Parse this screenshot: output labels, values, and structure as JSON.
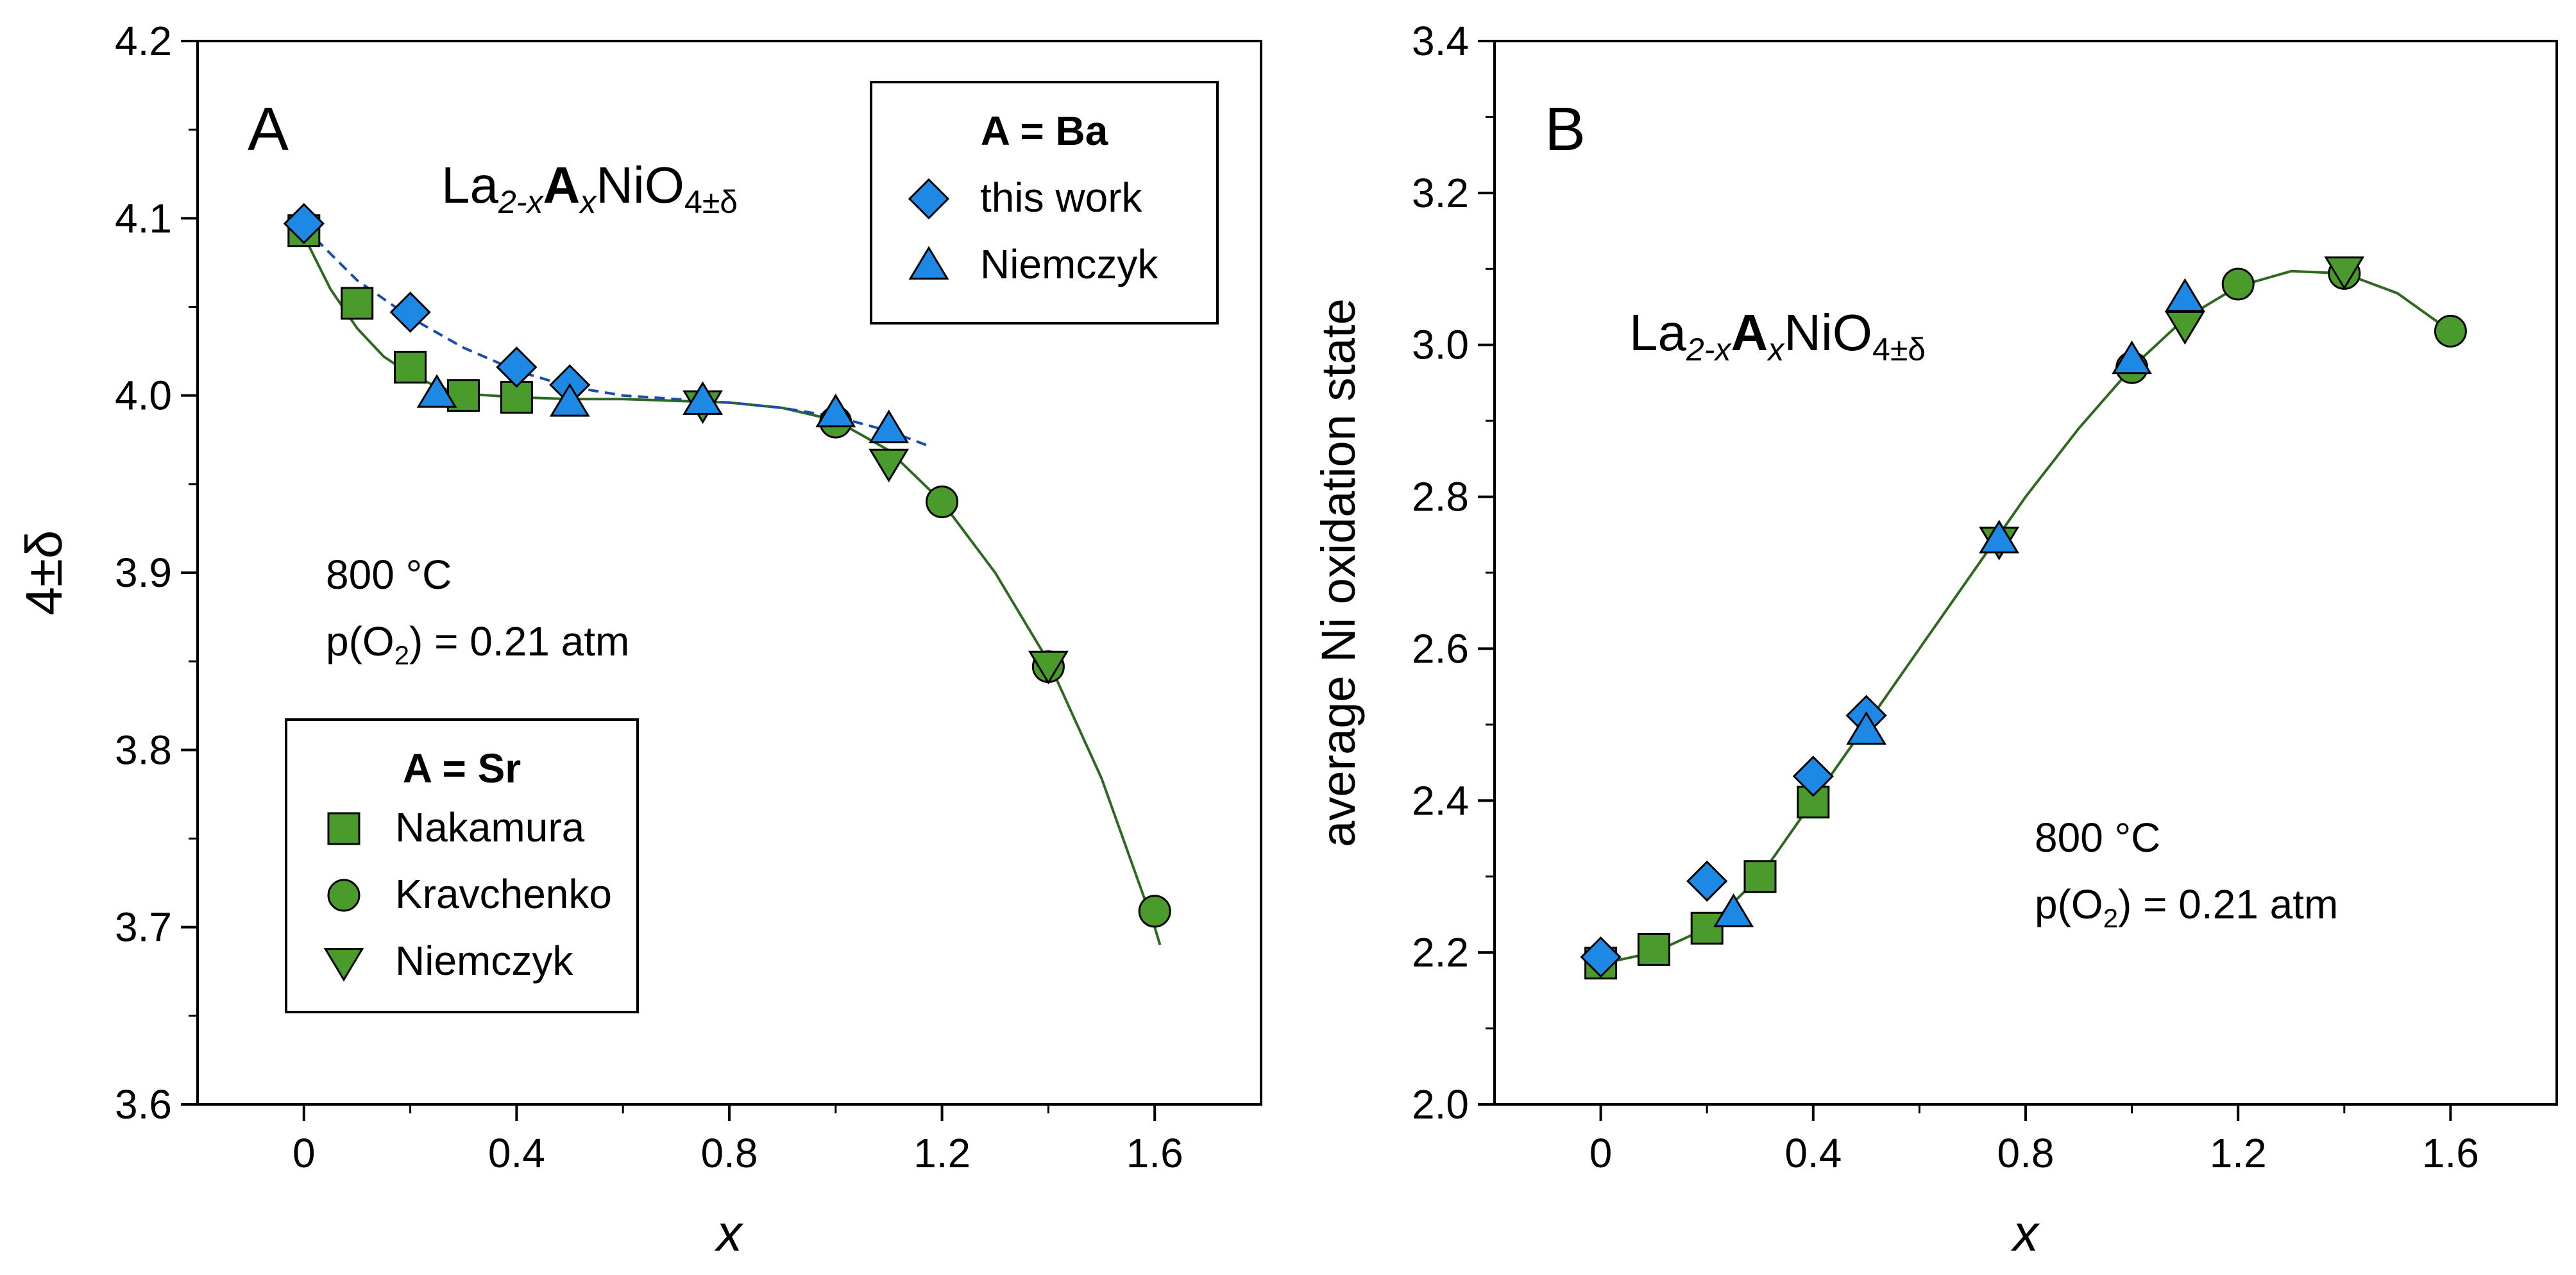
{
  "chart_data": [
    {
      "type": "scatter",
      "panel_label": "A",
      "xlabel": "x",
      "ylabel": "4±δ",
      "xlim": [
        -0.2,
        1.8
      ],
      "ylim": [
        3.6,
        4.2
      ],
      "xticks": [
        0,
        0.4,
        0.8,
        1.2,
        1.6
      ],
      "xtick_labels": [
        "0",
        "0.4",
        "0.8",
        "1.2",
        "1.6"
      ],
      "yticks": [
        3.6,
        3.7,
        3.8,
        3.9,
        4.0,
        4.1,
        4.2
      ],
      "ytick_labels": [
        "3.6",
        "3.7",
        "3.8",
        "3.9",
        "4.0",
        "4.1",
        "4.2"
      ],
      "formula": {
        "base": "La",
        "sub1": "2-x",
        "bold": "A",
        "sub2": "x",
        "mid": "NiO",
        "sub3": "4±δ"
      },
      "conditions": {
        "temperature": "800 °C",
        "pressure_pre": "p(O",
        "pressure_sub": "2",
        "pressure_post": ") = 0.21 atm"
      },
      "legends": [
        {
          "title": "A = Ba",
          "position": "top-right",
          "entries": [
            "this work",
            "Niemczyk"
          ]
        },
        {
          "title": "A = Sr",
          "position": "bottom-left",
          "entries": [
            "Nakamura",
            "Kravchenko",
            "Niemczyk"
          ]
        }
      ],
      "series": [
        {
          "name": "this work",
          "group": "A = Ba",
          "marker": "diamond",
          "color": "#1e88e5",
          "points": [
            [
              0,
              4.097
            ],
            [
              0.2,
              4.047
            ],
            [
              0.4,
              4.016
            ],
            [
              0.5,
              4.006
            ]
          ]
        },
        {
          "name": "Niemczyk",
          "group": "A = Ba",
          "marker": "triangle-up",
          "color": "#1e88e5",
          "points": [
            [
              0.25,
              4.001
            ],
            [
              0.5,
              3.996
            ],
            [
              0.75,
              3.997
            ],
            [
              1.0,
              3.99
            ],
            [
              1.1,
              3.981
            ]
          ]
        },
        {
          "name": "Nakamura",
          "group": "A = Sr",
          "marker": "square",
          "color": "#4a9a2c",
          "points": [
            [
              0,
              4.093
            ],
            [
              0.1,
              4.052
            ],
            [
              0.2,
              4.016
            ],
            [
              0.3,
              4.0
            ],
            [
              0.4,
              3.999
            ]
          ]
        },
        {
          "name": "Kravchenko",
          "group": "A = Sr",
          "marker": "circle",
          "color": "#4a9a2c",
          "points": [
            [
              1.0,
              3.985
            ],
            [
              1.2,
              3.94
            ],
            [
              1.4,
              3.847
            ],
            [
              1.6,
              3.709
            ]
          ]
        },
        {
          "name": "Niemczyk",
          "group": "A = Sr",
          "marker": "triangle-down",
          "color": "#4a9a2c",
          "points": [
            [
              0.75,
              3.995
            ],
            [
              1.1,
              3.962
            ],
            [
              1.4,
              3.848
            ]
          ]
        }
      ],
      "fit_lines": [
        {
          "name": "Sr fit",
          "style": "solid",
          "color": "#2d6a1f",
          "points": [
            [
              0,
              4.09
            ],
            [
              0.05,
              4.06
            ],
            [
              0.1,
              4.038
            ],
            [
              0.15,
              4.022
            ],
            [
              0.2,
              4.012
            ],
            [
              0.25,
              4.005
            ],
            [
              0.3,
              4.001
            ],
            [
              0.4,
              3.999
            ],
            [
              0.5,
              3.998
            ],
            [
              0.6,
              3.998
            ],
            [
              0.7,
              3.997
            ],
            [
              0.8,
              3.996
            ],
            [
              0.9,
              3.993
            ],
            [
              1.0,
              3.986
            ],
            [
              1.1,
              3.969
            ],
            [
              1.2,
              3.94
            ],
            [
              1.3,
              3.9
            ],
            [
              1.4,
              3.85
            ],
            [
              1.5,
              3.784
            ],
            [
              1.6,
              3.7
            ],
            [
              1.61,
              3.69
            ]
          ]
        },
        {
          "name": "Ba fit",
          "style": "dashed",
          "color": "#1a4bb0",
          "points": [
            [
              0,
              4.095
            ],
            [
              0.1,
              4.065
            ],
            [
              0.2,
              4.044
            ],
            [
              0.3,
              4.027
            ],
            [
              0.4,
              4.014
            ],
            [
              0.5,
              4.005
            ],
            [
              0.6,
              4.0
            ],
            [
              0.7,
              3.998
            ],
            [
              0.8,
              3.996
            ],
            [
              0.9,
              3.993
            ],
            [
              1.0,
              3.988
            ],
            [
              1.1,
              3.98
            ],
            [
              1.18,
              3.971
            ]
          ]
        }
      ]
    },
    {
      "type": "scatter",
      "panel_label": "B",
      "xlabel": "x",
      "ylabel": "average Ni oxidation state",
      "xlim": [
        -0.2,
        1.8
      ],
      "ylim": [
        2.0,
        3.4
      ],
      "xticks": [
        0,
        0.4,
        0.8,
        1.2,
        1.6
      ],
      "xtick_labels": [
        "0",
        "0.4",
        "0.8",
        "1.2",
        "1.6"
      ],
      "yticks": [
        2.0,
        2.2,
        2.4,
        2.6,
        2.8,
        3.0,
        3.2,
        3.4
      ],
      "ytick_labels": [
        "2.0",
        "2.2",
        "2.4",
        "2.6",
        "2.8",
        "3.0",
        "3.2",
        "3.4"
      ],
      "formula": {
        "base": "La",
        "sub1": "2-x",
        "bold": "A",
        "sub2": "x",
        "mid": "NiO",
        "sub3": "4±δ"
      },
      "conditions": {
        "temperature": "800 °C",
        "pressure_pre": "p(O",
        "pressure_sub": "2",
        "pressure_post": ") = 0.21 atm"
      },
      "series": [
        {
          "name": "this work",
          "group": "A = Ba",
          "marker": "diamond",
          "color": "#1e88e5",
          "points": [
            [
              0,
              2.194
            ],
            [
              0.2,
              2.294
            ],
            [
              0.4,
              2.432
            ],
            [
              0.5,
              2.512
            ]
          ]
        },
        {
          "name": "Niemczyk",
          "group": "A = Ba",
          "marker": "triangle-up",
          "color": "#1e88e5",
          "points": [
            [
              0.25,
              2.252
            ],
            [
              0.5,
              2.492
            ],
            [
              0.75,
              2.744
            ],
            [
              1.0,
              2.98
            ],
            [
              1.1,
              3.062
            ]
          ]
        },
        {
          "name": "Nakamura",
          "group": "A = Sr",
          "marker": "square",
          "color": "#4a9a2c",
          "points": [
            [
              0,
              2.186
            ],
            [
              0.1,
              2.204
            ],
            [
              0.2,
              2.232
            ],
            [
              0.3,
              2.3
            ],
            [
              0.4,
              2.398
            ]
          ]
        },
        {
          "name": "Kravchenko",
          "group": "A = Sr",
          "marker": "circle",
          "color": "#4a9a2c",
          "points": [
            [
              1.0,
              2.97
            ],
            [
              1.2,
              3.08
            ],
            [
              1.4,
              3.094
            ],
            [
              1.6,
              3.018
            ]
          ]
        },
        {
          "name": "Niemczyk",
          "group": "A = Sr",
          "marker": "triangle-down",
          "color": "#4a9a2c",
          "points": [
            [
              0.75,
              2.742
            ],
            [
              1.1,
              3.026
            ],
            [
              1.4,
              3.098
            ]
          ]
        }
      ],
      "fit_lines": [
        {
          "name": "Sr fit",
          "style": "solid",
          "color": "#2d6a1f",
          "points": [
            [
              0,
              2.185
            ],
            [
              0.1,
              2.2
            ],
            [
              0.2,
              2.232
            ],
            [
              0.3,
              2.3
            ],
            [
              0.4,
              2.4
            ],
            [
              0.5,
              2.5
            ],
            [
              0.6,
              2.6
            ],
            [
              0.7,
              2.7
            ],
            [
              0.8,
              2.8
            ],
            [
              0.9,
              2.89
            ],
            [
              1.0,
              2.97
            ],
            [
              1.1,
              3.035
            ],
            [
              1.2,
              3.077
            ],
            [
              1.3,
              3.097
            ],
            [
              1.4,
              3.094
            ],
            [
              1.5,
              3.068
            ],
            [
              1.6,
              3.018
            ]
          ]
        }
      ]
    }
  ]
}
